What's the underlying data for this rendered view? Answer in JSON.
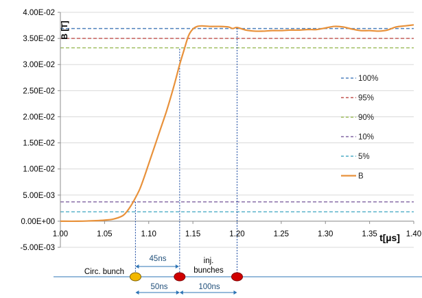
{
  "chart_data": {
    "type": "line",
    "title": "",
    "xlabel": "t[µs]",
    "ylabel": "B [T]",
    "xlim": [
      1.0,
      1.4
    ],
    "ylim": [
      -0.005,
      0.04
    ],
    "x_ticks": [
      1.0,
      1.05,
      1.1,
      1.15,
      1.2,
      1.25,
      1.3,
      1.35,
      1.4
    ],
    "x_tick_labels": [
      "1.00",
      "1.05",
      "1.10",
      "1.15",
      "1.20",
      "1.25",
      "1.30",
      "1.35",
      "1.40"
    ],
    "y_ticks": [
      -0.005,
      0,
      0.005,
      0.01,
      0.015,
      0.02,
      0.025,
      0.03,
      0.035,
      0.04
    ],
    "y_tick_labels": [
      "-5.00E-03",
      "0.00E+00",
      "5.00E-03",
      "1.00E-02",
      "1.50E-02",
      "2.00E-02",
      "2.50E-02",
      "3.00E-02",
      "3.50E-02",
      "4.00E-02"
    ],
    "grid": "horizontal",
    "legend_position": "right",
    "reference_lines": [
      {
        "name": "100%",
        "y": 0.0369,
        "color": "#4f81bd",
        "dash": true
      },
      {
        "name": "95%",
        "y": 0.035,
        "color": "#c0504d",
        "dash": true
      },
      {
        "name": "90%",
        "y": 0.0332,
        "color": "#9bbb59",
        "dash": true
      },
      {
        "name": "10%",
        "y": 0.0037,
        "color": "#8064a2",
        "dash": true
      },
      {
        "name": "5%",
        "y": 0.0018,
        "color": "#4bacc6",
        "dash": true
      }
    ],
    "series": [
      {
        "name": "B",
        "color": "#e8913a",
        "x": [
          1.0,
          1.02,
          1.04,
          1.05,
          1.06,
          1.07,
          1.075,
          1.08,
          1.085,
          1.09,
          1.095,
          1.1,
          1.105,
          1.11,
          1.115,
          1.12,
          1.125,
          1.13,
          1.135,
          1.14,
          1.145,
          1.15,
          1.155,
          1.16,
          1.17,
          1.18,
          1.19,
          1.195,
          1.2,
          1.21,
          1.22,
          1.23,
          1.24,
          1.25,
          1.26,
          1.27,
          1.28,
          1.29,
          1.3,
          1.31,
          1.32,
          1.33,
          1.34,
          1.35,
          1.36,
          1.37,
          1.38,
          1.39,
          1.4
        ],
        "y": [
          0.0,
          0.0,
          0.0001,
          0.0002,
          0.0004,
          0.001,
          0.0018,
          0.003,
          0.0045,
          0.0062,
          0.0085,
          0.011,
          0.0135,
          0.016,
          0.0185,
          0.021,
          0.0238,
          0.0268,
          0.03,
          0.0328,
          0.0355,
          0.0368,
          0.0373,
          0.0374,
          0.0373,
          0.0373,
          0.0372,
          0.0369,
          0.0371,
          0.0366,
          0.0364,
          0.0364,
          0.0365,
          0.0365,
          0.0366,
          0.0366,
          0.0367,
          0.0367,
          0.037,
          0.0373,
          0.0372,
          0.0368,
          0.0365,
          0.0365,
          0.0364,
          0.0366,
          0.0372,
          0.0374,
          0.0376
        ]
      }
    ],
    "vertical_markers": [
      1.085,
      1.135,
      1.2
    ],
    "annotations": {
      "circ_bunch": "Circ. bunch",
      "inj_bunches_line1": "inj.",
      "inj_bunches_line2": "bunches",
      "span_45": "45ns",
      "span_50": "50ns",
      "span_100": "100ns"
    }
  }
}
